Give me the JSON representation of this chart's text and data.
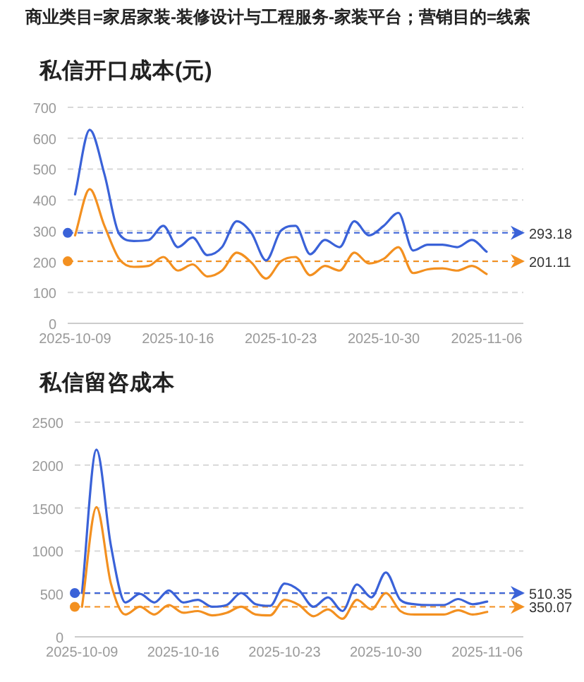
{
  "chart_data": [
    {
      "type": "line",
      "title": "私信开口成本(元)",
      "annotations": [
        "商业类目=家居家装-装修设计与工程服务-家装平台；营销目的=线索"
      ],
      "x": [
        "2025-10-09",
        "2025-10-10",
        "2025-10-11",
        "2025-10-12",
        "2025-10-13",
        "2025-10-14",
        "2025-10-15",
        "2025-10-16",
        "2025-10-17",
        "2025-10-18",
        "2025-10-19",
        "2025-10-20",
        "2025-10-21",
        "2025-10-22",
        "2025-10-23",
        "2025-10-24",
        "2025-10-25",
        "2025-10-26",
        "2025-10-27",
        "2025-10-28",
        "2025-10-29",
        "2025-10-30",
        "2025-10-31",
        "2025-11-01",
        "2025-11-02",
        "2025-11-03",
        "2025-11-04",
        "2025-11-05",
        "2025-11-06"
      ],
      "series": [
        {
          "color": "#3a62d8",
          "values": [
            418,
            627,
            483,
            290,
            267,
            270,
            316,
            247,
            278,
            221,
            247,
            331,
            293,
            204,
            300,
            316,
            224,
            270,
            247,
            331,
            285,
            316,
            358,
            236,
            255,
            255,
            247,
            270,
            232
          ]
        },
        {
          "color": "#f39020",
          "values": [
            285,
            435,
            316,
            209,
            183,
            186,
            215,
            171,
            191,
            152,
            171,
            229,
            197,
            145,
            201,
            215,
            156,
            186,
            171,
            229,
            194,
            209,
            247,
            163,
            175,
            178,
            171,
            186,
            160
          ]
        }
      ],
      "ref_lines": [
        {
          "axis": "y",
          "value": 293.18,
          "label": "293.18",
          "color": "#3a62d8",
          "line_style": "dashed"
        },
        {
          "axis": "y",
          "value": 201.11,
          "label": "201.11",
          "color": "#f39020",
          "line_style": "dashed"
        }
      ],
      "xlim": [
        "2025-10-08T12:00",
        "2025-11-08T12:00"
      ],
      "xticks": [
        "2025-10-09",
        "2025-10-16",
        "2025-10-23",
        "2025-10-30",
        "2025-11-06"
      ],
      "ylim": [
        0,
        700
      ],
      "yticks": [
        0,
        100,
        200,
        300,
        400,
        500,
        600,
        700
      ],
      "grid": "y",
      "marker": "none",
      "line_style": "solid"
    },
    {
      "type": "line",
      "title": "私信留咨成本",
      "x": [
        "2025-10-09",
        "2025-10-10",
        "2025-10-11",
        "2025-10-12",
        "2025-10-13",
        "2025-10-14",
        "2025-10-15",
        "2025-10-16",
        "2025-10-17",
        "2025-10-18",
        "2025-10-19",
        "2025-10-20",
        "2025-10-21",
        "2025-10-22",
        "2025-10-23",
        "2025-10-24",
        "2025-10-25",
        "2025-10-26",
        "2025-10-27",
        "2025-10-28",
        "2025-10-29",
        "2025-10-30",
        "2025-10-31",
        "2025-11-01",
        "2025-11-02",
        "2025-11-03",
        "2025-11-04",
        "2025-11-05",
        "2025-11-06"
      ],
      "series": [
        {
          "color": "#3a62d8",
          "values": [
            510,
            2180,
            1060,
            400,
            500,
            400,
            540,
            400,
            430,
            350,
            370,
            510,
            380,
            360,
            620,
            540,
            350,
            460,
            300,
            610,
            460,
            750,
            430,
            380,
            370,
            370,
            440,
            380,
            410
          ]
        },
        {
          "color": "#f39020",
          "values": [
            350,
            1510,
            620,
            260,
            350,
            260,
            370,
            280,
            300,
            250,
            280,
            350,
            260,
            250,
            430,
            370,
            240,
            320,
            210,
            430,
            320,
            510,
            300,
            260,
            260,
            260,
            310,
            260,
            290
          ]
        }
      ],
      "ref_lines": [
        {
          "axis": "y",
          "value": 510.35,
          "label": "510.35",
          "color": "#3a62d8",
          "line_style": "dashed"
        },
        {
          "axis": "y",
          "value": 350.07,
          "label": "350.07",
          "color": "#f39020",
          "line_style": "dashed"
        }
      ],
      "xlim": [
        "2025-10-08T12:00",
        "2025-11-08T12:00"
      ],
      "xticks": [
        "2025-10-09",
        "2025-10-16",
        "2025-10-23",
        "2025-10-30",
        "2025-11-06"
      ],
      "ylim": [
        0,
        2500
      ],
      "yticks": [
        0,
        500,
        1000,
        1500,
        2000,
        2500
      ],
      "grid": "y",
      "marker": "none",
      "line_style": "solid"
    }
  ]
}
